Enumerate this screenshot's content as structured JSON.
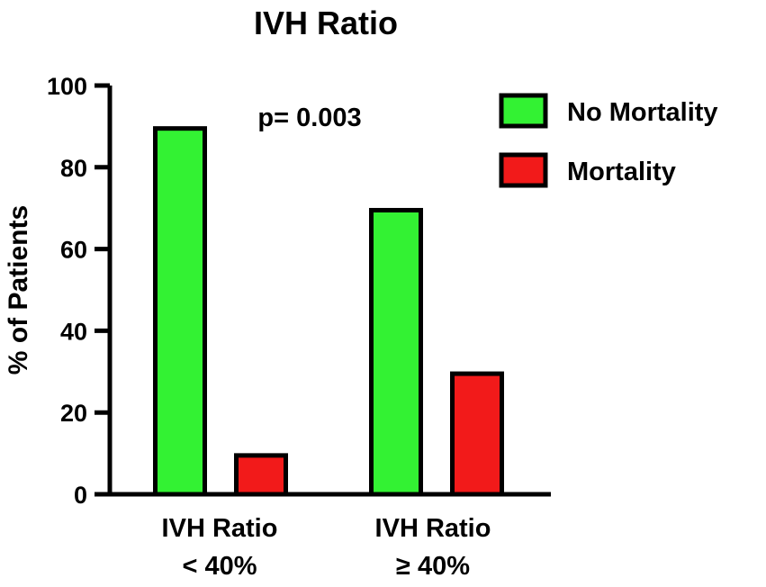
{
  "chart_data": {
    "type": "bar",
    "title": "IVH Ratio",
    "xlabel": "",
    "ylabel": "% of Patients",
    "ylim": [
      0,
      100
    ],
    "yticks": [
      "0",
      "20",
      "40",
      "60",
      "80",
      "100"
    ],
    "categories": [
      {
        "line1": "IVH Ratio",
        "line2": "< 40%"
      },
      {
        "line1": "IVH Ratio",
        "line2": "≥ 40%"
      }
    ],
    "series": [
      {
        "name": "No Mortality",
        "color": "#33f233",
        "values": [
          89.5,
          69.5
        ]
      },
      {
        "name": "Mortality",
        "color": "#f21a1a",
        "values": [
          9.5,
          29.5
        ]
      }
    ],
    "annotation": "p= 0.003",
    "legend_position": "top-right",
    "grid": false
  }
}
